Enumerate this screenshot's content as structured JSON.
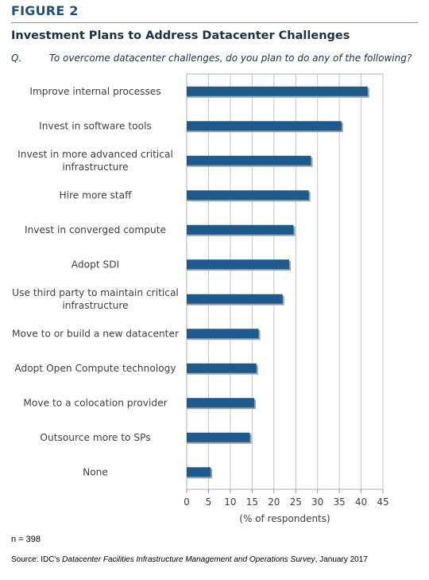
{
  "figure_label": "FIGURE 2",
  "title": "Investment Plans to Address Datacenter Challenges",
  "question_label": "Q.",
  "question": "To overcome datacenter challenges, do you plan to do any of the following?",
  "note": "n = 398",
  "source": {
    "prefix": "Source: IDC's ",
    "survey": "Datacenter Facilities Infrastructure Management and Operations Survey",
    "suffix": ", January 2017"
  },
  "colors": {
    "bar": "#1f5a8c",
    "bar_shadow": "#9aa4ae",
    "heading": "#1f4e79"
  },
  "chart_data": {
    "type": "bar",
    "orientation": "horizontal",
    "categories": [
      "Improve internal processes",
      "Invest in software tools",
      "Invest in more advanced critical infrastructure",
      "Hire more staff",
      "Invest in converged compute",
      "Adopt SDI",
      "Use third party to maintain critical infrastructure",
      "Move to or build a new datacenter",
      "Adopt Open Compute technology",
      "Move to a colocation provider",
      "Outsource more to SPs",
      "None"
    ],
    "category_lines": [
      [
        "Improve internal processes"
      ],
      [
        "Invest in software tools"
      ],
      [
        "Invest in more advanced critical",
        "infrastructure"
      ],
      [
        "Hire more staff"
      ],
      [
        "Invest in converged compute"
      ],
      [
        "Adopt SDI"
      ],
      [
        "Use third party to maintain critical",
        "infrastructure"
      ],
      [
        "Move to or build a new datacenter"
      ],
      [
        "Adopt Open Compute technology"
      ],
      [
        "Move to a colocation provider"
      ],
      [
        "Outsource more to SPs"
      ],
      [
        "None"
      ]
    ],
    "values": [
      41.5,
      35.5,
      28.5,
      28,
      24.5,
      23.5,
      22,
      16.5,
      16,
      15.5,
      14.5,
      5.5
    ],
    "xlabel": "(% of respondents)",
    "xlim": [
      0,
      45
    ],
    "xticks": [
      "0",
      "5",
      "10",
      "15",
      "20",
      "25",
      "30",
      "35",
      "40",
      "45"
    ],
    "grid": true
  }
}
